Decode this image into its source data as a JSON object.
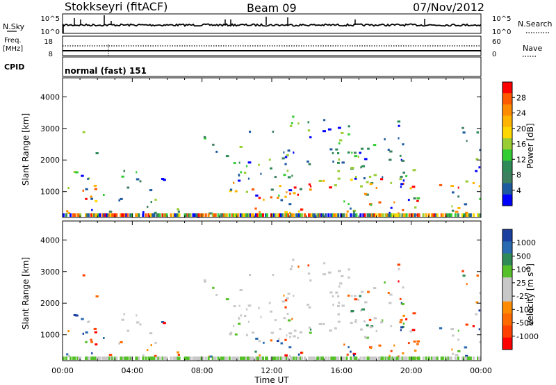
{
  "header": {
    "station": "Stokkseyri (fitACF)",
    "beam": "Beam 09",
    "date": "07/Nov/2012"
  },
  "status_panels": {
    "nsky_label": "N.Sky",
    "nsky_ticks": [
      "10^5",
      "10^0"
    ],
    "nsearch_label": "N.Search",
    "nsearch_ticks": [
      "10^5",
      "10^0"
    ],
    "freq_label_line1": "Freq.",
    "freq_label_line2": "[MHz]",
    "freq_ticks": [
      "18",
      "8"
    ],
    "nave_label": "Nave",
    "nave_ticks": [
      "60",
      "0"
    ],
    "cpid_label": "CPID",
    "cpid_value": "normal (fast) 151"
  },
  "chart_data": [
    {
      "type": "heatmap",
      "name": "power",
      "ylabel": "Slant Range [km]",
      "xlabel": "",
      "ylim": [
        180,
        4600
      ],
      "yticks": [
        "1000",
        "2000",
        "3000",
        "4000"
      ],
      "xticks": [
        "00:00",
        "04:00",
        "08:00",
        "12:00",
        "16:00",
        "20:00",
        "00:00"
      ],
      "colorbar": {
        "label": "Power [dB]",
        "ticks": [
          "28",
          "24",
          "20",
          "16",
          "12",
          "8",
          "4"
        ],
        "colors": [
          "#ff0000",
          "#ff5a00",
          "#ff8c00",
          "#ffb400",
          "#ffd700",
          "#9acd32",
          "#32cd32",
          "#2e8b57",
          "#3c8060",
          "#1e5aa0",
          "#0000ff"
        ]
      }
    },
    {
      "type": "heatmap",
      "name": "velocity",
      "ylabel": "Slant Range [km]",
      "xlabel": "Time UT",
      "ylim": [
        180,
        4600
      ],
      "yticks": [
        "1000",
        "2000",
        "3000",
        "4000"
      ],
      "xticks": [
        "00:00",
        "04:00",
        "08:00",
        "12:00",
        "16:00",
        "20:00",
        "00:00"
      ],
      "colorbar": {
        "label": "Velocity [m s",
        "label_sup": "-1",
        "label_close": "]",
        "ticks": [
          "1000",
          "500",
          "100",
          "25",
          "-25",
          "-100",
          "-500",
          "-1000"
        ],
        "colors": [
          "#1a3fa0",
          "#2a6ab0",
          "#2e8b57",
          "#56c02a",
          "#c8c8c8",
          "#c8c8c8",
          "#ff8c00",
          "#ff6a00",
          "#ff4000",
          "#ff0000"
        ]
      }
    }
  ]
}
